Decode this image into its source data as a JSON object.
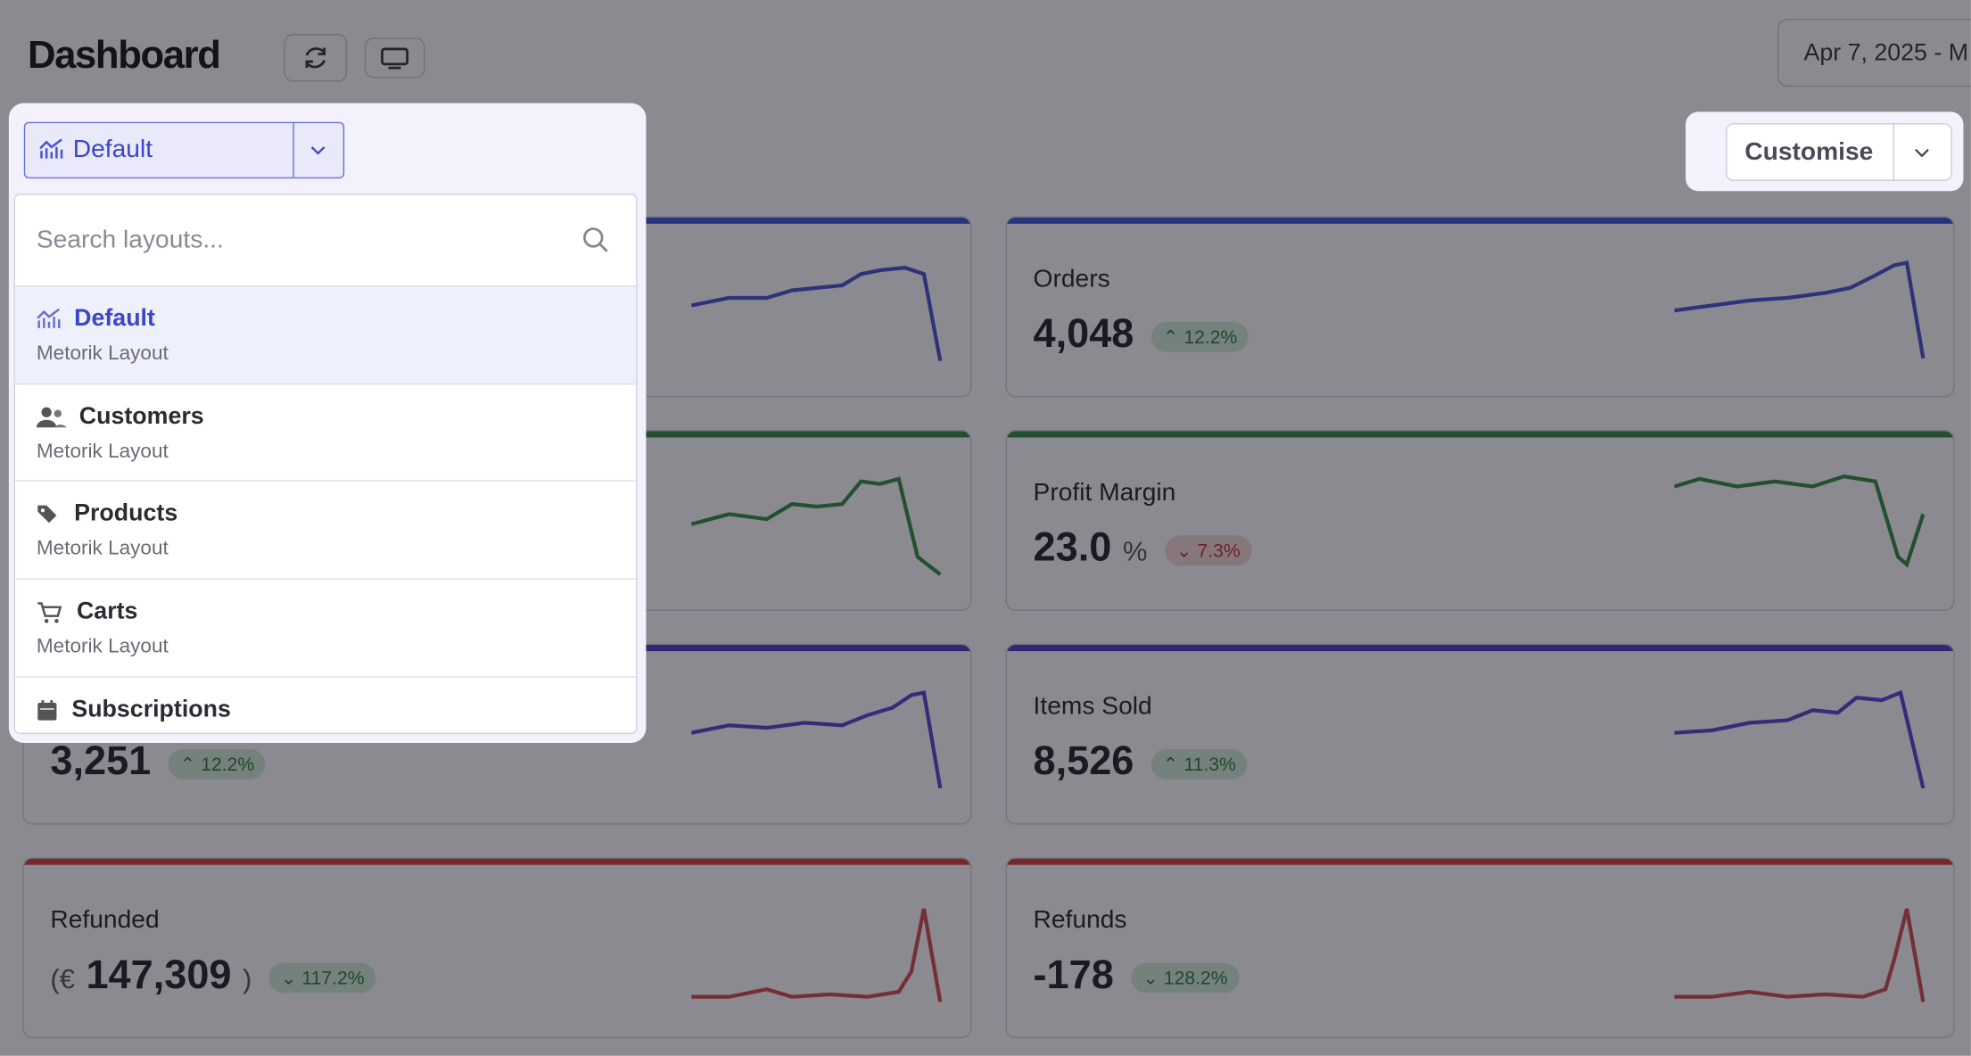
{
  "header": {
    "title": "Dashboard",
    "date_range": "Apr 7, 2025 - M"
  },
  "layout_picker": {
    "selected": "Default",
    "search_placeholder": "Search layouts...",
    "items": [
      {
        "name": "Default",
        "source": "Metorik Layout"
      },
      {
        "name": "Customers",
        "source": "Metorik Layout"
      },
      {
        "name": "Products",
        "source": "Metorik Layout"
      },
      {
        "name": "Carts",
        "source": "Metorik Layout"
      },
      {
        "name": "Subscriptions"
      }
    ]
  },
  "customise": "Customise",
  "cards": [
    {
      "value": "3,251",
      "change": "12.2%"
    },
    {
      "title": "Refunded",
      "prefix": "(€",
      "value": "147,309",
      "suffix": ")",
      "change": "117.2%"
    },
    {
      "title": "Orders",
      "value": "4,048",
      "change": "12.2%"
    },
    {
      "title": "Profit Margin",
      "value": "23.0",
      "suffix": "%",
      "change": "7.3%"
    },
    {
      "title": "Items Sold",
      "value": "8,526",
      "change": "11.3%"
    },
    {
      "title": "Refunds",
      "value": "-178",
      "change": "128.2%"
    }
  ]
}
